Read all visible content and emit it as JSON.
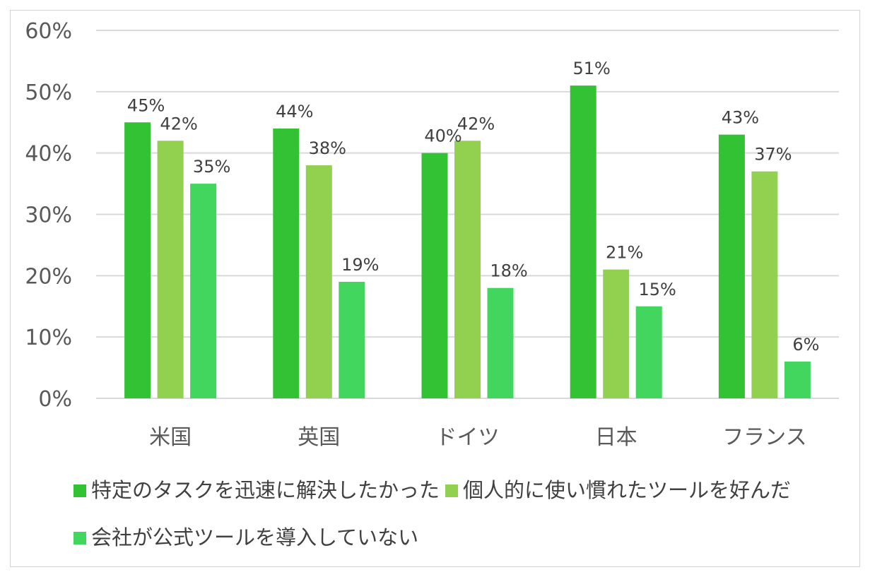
{
  "chart_data": {
    "type": "bar",
    "title": "",
    "xlabel": "",
    "ylabel": "",
    "categories": [
      "米国",
      "英国",
      "ドイツ",
      "日本",
      "フランス"
    ],
    "series": [
      {
        "name": "特定のタスクを迅速に解決したかった",
        "values": [
          45,
          44,
          40,
          51,
          43
        ],
        "color": "#33c233"
      },
      {
        "name": "個人的に使い慣れたツールを好んだ",
        "values": [
          42,
          38,
          42,
          21,
          37
        ],
        "color": "#92d050"
      },
      {
        "name": "会社が公式ツールを導入していない",
        "values": [
          35,
          19,
          18,
          15,
          6
        ],
        "color": "#42d65f"
      }
    ],
    "ylim": [
      0,
      60
    ],
    "yticks": [
      "0%",
      "10%",
      "20%",
      "30%",
      "40%",
      "50%",
      "60%"
    ],
    "value_suffix": "%",
    "grid": true,
    "legend_position": "bottom"
  }
}
